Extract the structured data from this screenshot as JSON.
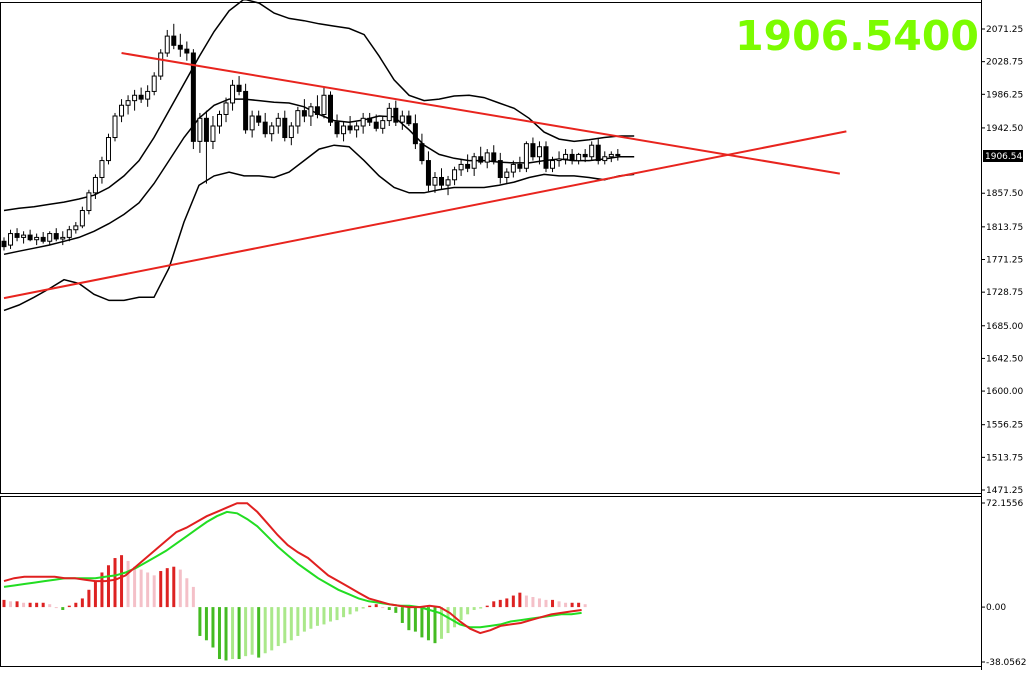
{
  "colors": {
    "background": "#ffffff",
    "frame": "#000000",
    "candle": "#000000",
    "trendline": "#e8241e",
    "bigprice": "#7cfc00",
    "macd_line": "#e02020",
    "signal_line": "#22dd22",
    "hist_pos_strong": "#dd2222",
    "hist_pos_weak": "#f4c0c8",
    "hist_neg_strong": "#44bb22",
    "hist_neg_weak": "#aae88a"
  },
  "price_label": "1906.5400",
  "current_price_tag": "1906.54",
  "chart_data": [
    {
      "type": "candlestick",
      "name": "main",
      "ylim": [
        1471.25,
        2114.0
      ],
      "y_ticks": [
        "2071.25",
        "2028.75",
        "1986.25",
        "1942.50",
        "1857.50",
        "1813.75",
        "1771.25",
        "1728.75",
        "1685.00",
        "1642.50",
        "1600.00",
        "1556.25",
        "1513.75",
        "1471.25"
      ],
      "y_tick_values": [
        2071.25,
        2028.75,
        1986.25,
        1942.5,
        1857.5,
        1813.75,
        1771.25,
        1728.75,
        1685.0,
        1642.5,
        1600.0,
        1556.25,
        1513.75,
        1471.25
      ],
      "candles": [
        [
          1795,
          1800,
          1783,
          1788
        ],
        [
          1790,
          1810,
          1785,
          1805
        ],
        [
          1805,
          1812,
          1795,
          1800
        ],
        [
          1800,
          1808,
          1792,
          1803
        ],
        [
          1803,
          1810,
          1795,
          1797
        ],
        [
          1797,
          1805,
          1790,
          1800
        ],
        [
          1800,
          1807,
          1792,
          1795
        ],
        [
          1795,
          1808,
          1790,
          1805
        ],
        [
          1805,
          1812,
          1795,
          1798
        ],
        [
          1798,
          1808,
          1790,
          1800
        ],
        [
          1800,
          1815,
          1795,
          1810
        ],
        [
          1810,
          1820,
          1805,
          1815
        ],
        [
          1815,
          1840,
          1812,
          1835
        ],
        [
          1835,
          1862,
          1830,
          1858
        ],
        [
          1858,
          1882,
          1850,
          1878
        ],
        [
          1878,
          1905,
          1870,
          1900
        ],
        [
          1900,
          1935,
          1895,
          1930
        ],
        [
          1930,
          1962,
          1925,
          1958
        ],
        [
          1958,
          1980,
          1950,
          1972
        ],
        [
          1972,
          1985,
          1960,
          1978
        ],
        [
          1978,
          1992,
          1965,
          1985
        ],
        [
          1985,
          1995,
          1975,
          1980
        ],
        [
          1980,
          1998,
          1970,
          1990
        ],
        [
          1990,
          2015,
          1985,
          2010
        ],
        [
          2010,
          2045,
          2005,
          2040
        ],
        [
          2040,
          2070,
          2035,
          2062
        ],
        [
          2062,
          2078,
          2045,
          2050
        ],
        [
          2050,
          2065,
          2035,
          2045
        ],
        [
          2045,
          2055,
          2030,
          2040
        ],
        [
          2040,
          2045,
          1915,
          1925
        ],
        [
          1925,
          1962,
          1910,
          1955
        ],
        [
          1955,
          1965,
          1870,
          1925
        ],
        [
          1925,
          1958,
          1915,
          1945
        ],
        [
          1945,
          1965,
          1935,
          1960
        ],
        [
          1960,
          1982,
          1950,
          1975
        ],
        [
          1975,
          2005,
          1965,
          1998
        ],
        [
          1998,
          2010,
          1985,
          1990
        ],
        [
          1990,
          2000,
          1935,
          1940
        ],
        [
          1940,
          1965,
          1930,
          1958
        ],
        [
          1958,
          1965,
          1945,
          1950
        ],
        [
          1950,
          1962,
          1930,
          1935
        ],
        [
          1935,
          1950,
          1925,
          1945
        ],
        [
          1945,
          1962,
          1935,
          1955
        ],
        [
          1955,
          1965,
          1925,
          1930
        ],
        [
          1930,
          1950,
          1920,
          1945
        ],
        [
          1945,
          1970,
          1935,
          1965
        ],
        [
          1965,
          1980,
          1950,
          1958
        ],
        [
          1958,
          1975,
          1945,
          1970
        ],
        [
          1970,
          1985,
          1955,
          1960
        ],
        [
          1960,
          1995,
          1955,
          1985
        ],
        [
          1985,
          1990,
          1945,
          1950
        ],
        [
          1950,
          1960,
          1930,
          1935
        ],
        [
          1935,
          1950,
          1925,
          1945
        ],
        [
          1945,
          1958,
          1935,
          1940
        ],
        [
          1940,
          1950,
          1930,
          1945
        ],
        [
          1945,
          1962,
          1935,
          1955
        ],
        [
          1955,
          1962,
          1945,
          1950
        ],
        [
          1950,
          1960,
          1938,
          1942
        ],
        [
          1942,
          1958,
          1935,
          1952
        ],
        [
          1952,
          1975,
          1945,
          1968
        ],
        [
          1968,
          1978,
          1945,
          1950
        ],
        [
          1950,
          1965,
          1940,
          1958
        ],
        [
          1958,
          1965,
          1945,
          1948
        ],
        [
          1948,
          1960,
          1915,
          1922
        ],
        [
          1922,
          1935,
          1895,
          1900
        ],
        [
          1900,
          1912,
          1860,
          1868
        ],
        [
          1868,
          1885,
          1858,
          1878
        ],
        [
          1878,
          1890,
          1862,
          1868
        ],
        [
          1868,
          1880,
          1855,
          1875
        ],
        [
          1875,
          1892,
          1868,
          1888
        ],
        [
          1888,
          1902,
          1880,
          1895
        ],
        [
          1895,
          1908,
          1885,
          1890
        ],
        [
          1890,
          1910,
          1880,
          1905
        ],
        [
          1905,
          1918,
          1895,
          1898
        ],
        [
          1898,
          1915,
          1890,
          1910
        ],
        [
          1910,
          1920,
          1895,
          1900
        ],
        [
          1900,
          1910,
          1870,
          1878
        ],
        [
          1878,
          1890,
          1870,
          1885
        ],
        [
          1885,
          1900,
          1878,
          1895
        ],
        [
          1895,
          1905,
          1885,
          1890
        ],
        [
          1890,
          1925,
          1885,
          1922
        ],
        [
          1922,
          1930,
          1900,
          1905
        ],
        [
          1905,
          1925,
          1895,
          1918
        ],
        [
          1918,
          1925,
          1885,
          1890
        ],
        [
          1890,
          1905,
          1885,
          1900
        ],
        [
          1900,
          1912,
          1892,
          1902
        ],
        [
          1902,
          1915,
          1895,
          1908
        ],
        [
          1908,
          1915,
          1895,
          1900
        ],
        [
          1900,
          1910,
          1895,
          1908
        ],
        [
          1908,
          1915,
          1898,
          1905
        ],
        [
          1905,
          1925,
          1900,
          1920
        ],
        [
          1920,
          1928,
          1895,
          1900
        ],
        [
          1900,
          1912,
          1895,
          1905
        ],
        [
          1905,
          1912,
          1898,
          1908
        ],
        [
          1908,
          1915,
          1900,
          1906.54
        ]
      ],
      "bb_upper": [
        1835,
        1838,
        1840,
        1843,
        1846,
        1850,
        1855,
        1865,
        1880,
        1900,
        1930,
        1965,
        2000,
        2035,
        2068,
        2095,
        2110,
        2105,
        2092,
        2085,
        2082,
        2078,
        2075,
        2072,
        2064,
        2036,
        2005,
        1985,
        1978,
        1980,
        1984,
        1985,
        1982,
        1975,
        1968,
        1955,
        1937,
        1928,
        1925,
        1927,
        1930,
        1932,
        1932
      ],
      "bb_middle": [
        1778,
        1782,
        1786,
        1790,
        1795,
        1800,
        1808,
        1818,
        1830,
        1845,
        1870,
        1900,
        1930,
        1955,
        1972,
        1980,
        1980,
        1978,
        1976,
        1975,
        1970,
        1960,
        1952,
        1950,
        1953,
        1958,
        1957,
        1940,
        1920,
        1908,
        1903,
        1900,
        1900,
        1898,
        1897,
        1897,
        1900,
        1902,
        1900,
        1900,
        1902,
        1905,
        1905
      ],
      "bb_lower": [
        1705,
        1712,
        1722,
        1733,
        1745,
        1740,
        1726,
        1718,
        1718,
        1722,
        1722,
        1760,
        1820,
        1868,
        1880,
        1885,
        1880,
        1880,
        1878,
        1885,
        1900,
        1915,
        1920,
        1918,
        1900,
        1880,
        1865,
        1858,
        1858,
        1862,
        1865,
        1865,
        1865,
        1868,
        1872,
        1878,
        1882,
        1880,
        1880,
        1878,
        1875,
        1880,
        1882
      ],
      "trendlines": [
        {
          "from": [
            18,
            2040
          ],
          "to": [
            128,
            1883
          ]
        },
        {
          "from": [
            0,
            1721
          ],
          "to": [
            129,
            1938
          ]
        }
      ]
    },
    {
      "type": "macd",
      "name": "sub",
      "ylim": [
        -38.0562,
        72.1556
      ],
      "y_ticks": [
        "72.1556",
        "0.00",
        "-38.0562"
      ],
      "y_tick_values": [
        72.1556,
        0.0,
        -38.0562
      ],
      "histogram": [
        5,
        4,
        4,
        3,
        3,
        3,
        3,
        2,
        0,
        -2,
        1,
        3,
        6,
        12,
        18,
        24,
        29,
        34,
        36,
        32,
        28,
        26,
        24,
        22,
        25,
        27,
        28,
        26,
        20,
        14,
        -20,
        -23,
        -28,
        -36,
        -37,
        -36,
        -36,
        -34,
        -33,
        -35,
        -32,
        -30,
        -27,
        -25,
        -23,
        -20,
        -17,
        -15,
        -13,
        -12,
        -10,
        -9,
        -7,
        -5,
        -3,
        -1,
        1,
        2,
        0,
        -2,
        -4,
        -11,
        -16,
        -17,
        -21,
        -23,
        -25,
        -22,
        -18,
        -14,
        -9,
        -5,
        -2,
        -1,
        1,
        4,
        5,
        6,
        8,
        10,
        8,
        7,
        6,
        5,
        5,
        4,
        3,
        3,
        3,
        2
      ],
      "macd": [
        18,
        20,
        21,
        21,
        21,
        21,
        20,
        20,
        19,
        18,
        18,
        19,
        22,
        28,
        34,
        40,
        46,
        52,
        55,
        59,
        63,
        66,
        69,
        72,
        72,
        66,
        58,
        50,
        43,
        38,
        34,
        28,
        22,
        18,
        14,
        10,
        6,
        4,
        2,
        1,
        0,
        0,
        1,
        0,
        -4,
        -10,
        -15,
        -18,
        -16,
        -13,
        -12,
        -11,
        -9,
        -7,
        -5,
        -4,
        -3,
        -2
      ],
      "signal": [
        14,
        15,
        16,
        17,
        18,
        19,
        20,
        20,
        20,
        20,
        21,
        22,
        24,
        27,
        31,
        35,
        39,
        44,
        49,
        54,
        59,
        63,
        66,
        65,
        61,
        56,
        49,
        42,
        36,
        30,
        25,
        20,
        16,
        12,
        9,
        6,
        4,
        3,
        2,
        1,
        1,
        0,
        -2,
        -4,
        -8,
        -12,
        -14,
        -14,
        -13,
        -12,
        -10,
        -9,
        -8,
        -7,
        -6,
        -5,
        -5,
        -4
      ]
    }
  ]
}
